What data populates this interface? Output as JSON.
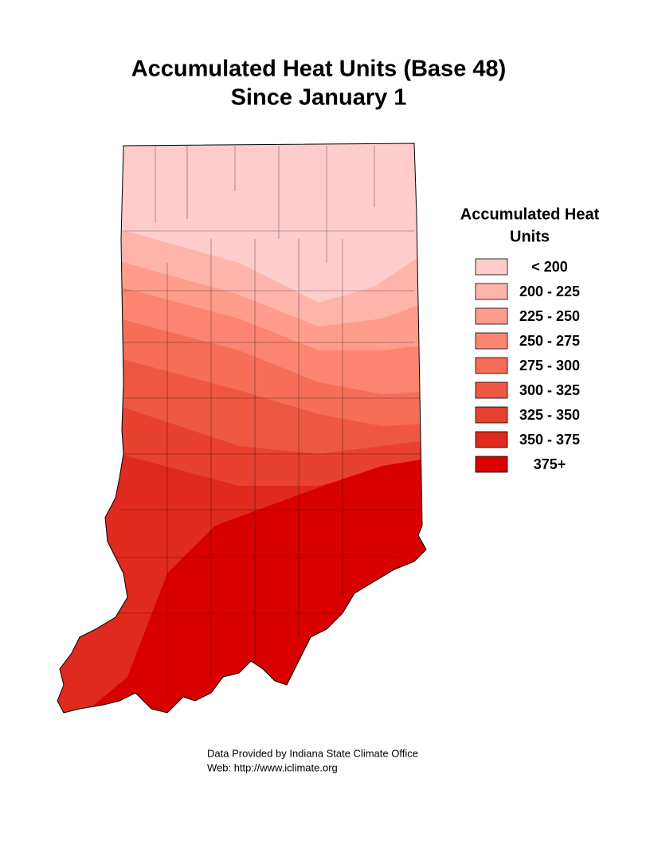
{
  "title": [
    "Accumulated Heat Units (Base 48)",
    "Since January 1"
  ],
  "legend": {
    "title": [
      "Accumulated Heat",
      "Units"
    ],
    "items": [
      {
        "label": "< 200",
        "color": "#ffcccc"
      },
      {
        "label": "200 - 225",
        "color": "#ffb4aa"
      },
      {
        "label": "225 - 250",
        "color": "#ff9c8c"
      },
      {
        "label": "250 - 275",
        "color": "#fb8570"
      },
      {
        "label": "275 - 300",
        "color": "#f66e58"
      },
      {
        "label": "300 - 325",
        "color": "#ee5842"
      },
      {
        "label": "325 - 350",
        "color": "#e8412f"
      },
      {
        "label": "350 - 375",
        "color": "#e02a1e"
      },
      {
        "label": "375+",
        "color": "#d90000"
      }
    ]
  },
  "footer": [
    "Data Provided by Indiana State Climate Office",
    "Web:  http://www.iclimate.org"
  ]
}
